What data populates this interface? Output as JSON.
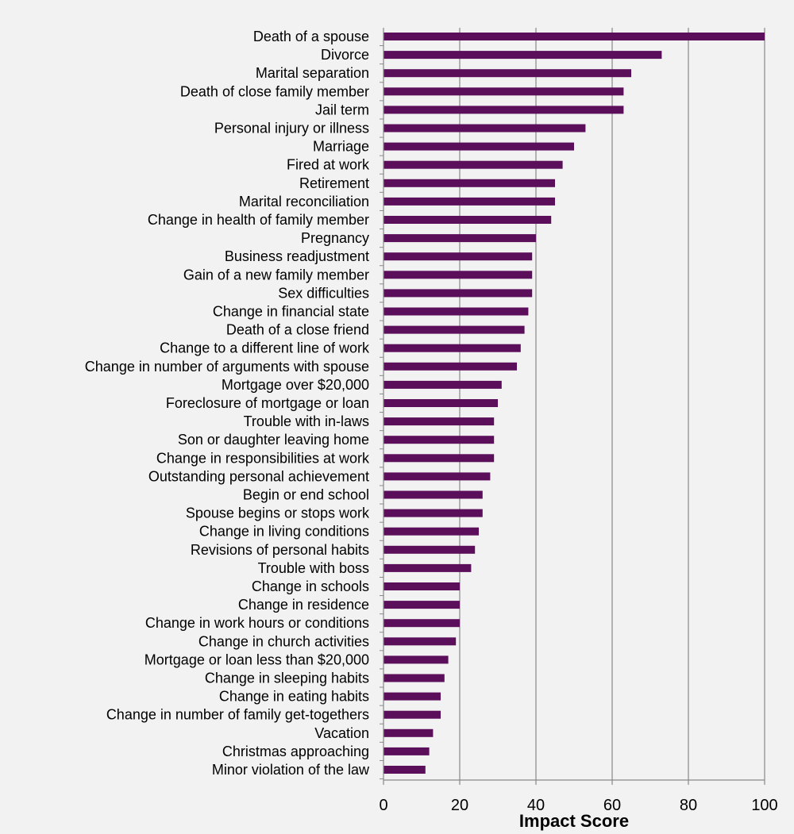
{
  "chart_data": {
    "type": "bar",
    "orientation": "horizontal",
    "title": "",
    "xlabel": "Impact Score",
    "ylabel": "",
    "xlim": [
      0,
      100
    ],
    "xticks": [
      0,
      20,
      40,
      60,
      80,
      100
    ],
    "grid": "vertical",
    "bar_color": "#5b0f5b",
    "gridline_color": "#888888",
    "axis_color": "#888888",
    "background_color": "#f2f2f2",
    "categories": [
      "Death of a spouse",
      "Divorce",
      "Marital separation",
      "Death of close family member",
      "Jail term",
      "Personal injury or illness",
      "Marriage",
      "Fired at work",
      "Retirement",
      "Marital reconciliation",
      "Change in health of family member",
      "Pregnancy",
      "Business readjustment",
      "Gain of a new family member",
      "Sex difficulties",
      "Change in financial state",
      "Death of a close friend",
      "Change to a different line of work",
      "Change in number of arguments with spouse",
      "Mortgage over $20,000",
      "Foreclosure of mortgage or loan",
      "Trouble with in-laws",
      "Son or daughter leaving home",
      "Change in responsibilities at work",
      "Outstanding personal achievement",
      "Begin or end school",
      "Spouse begins or stops work",
      "Change in living conditions",
      "Revisions of personal habits",
      "Trouble with boss",
      "Change in schools",
      "Change in residence",
      "Change in work hours or conditions",
      "Change in church activities",
      "Mortgage or loan less than $20,000",
      "Change in sleeping habits",
      "Change in eating habits",
      "Change in number of family get-togethers",
      "Vacation",
      "Christmas approaching",
      "Minor violation of the law"
    ],
    "values": [
      100,
      73,
      65,
      63,
      63,
      53,
      50,
      47,
      45,
      45,
      44,
      40,
      39,
      39,
      39,
      38,
      37,
      36,
      35,
      31,
      30,
      29,
      29,
      29,
      28,
      26,
      26,
      25,
      24,
      23,
      20,
      20,
      20,
      19,
      17,
      16,
      15,
      15,
      13,
      12,
      11
    ]
  }
}
